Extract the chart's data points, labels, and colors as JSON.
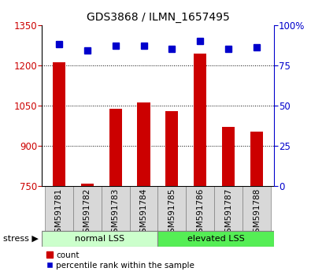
{
  "title": "GDS3868 / ILMN_1657495",
  "categories": [
    "GSM591781",
    "GSM591782",
    "GSM591783",
    "GSM591784",
    "GSM591785",
    "GSM591786",
    "GSM591787",
    "GSM591788"
  ],
  "bar_values": [
    1210,
    757,
    1038,
    1062,
    1030,
    1243,
    970,
    952
  ],
  "percentile_values": [
    88,
    84,
    87,
    87,
    85,
    90,
    85,
    86
  ],
  "ylim_left": [
    750,
    1350
  ],
  "ylim_right": [
    0,
    100
  ],
  "yticks_left": [
    750,
    900,
    1050,
    1200,
    1350
  ],
  "yticks_right": [
    0,
    25,
    50,
    75,
    100
  ],
  "bar_color": "#cc0000",
  "percentile_color": "#0000cc",
  "group1_label": "normal LSS",
  "group2_label": "elevated LSS",
  "group1_bg": "#ccffcc",
  "group2_bg": "#55ee55",
  "stress_label": "stress",
  "legend_count": "count",
  "legend_percentile": "percentile rank within the sample",
  "left_axis_color": "#cc0000",
  "right_axis_color": "#0000cc",
  "tick_label_bg": "#d8d8d8",
  "figsize": [
    3.95,
    3.54
  ],
  "dpi": 100
}
